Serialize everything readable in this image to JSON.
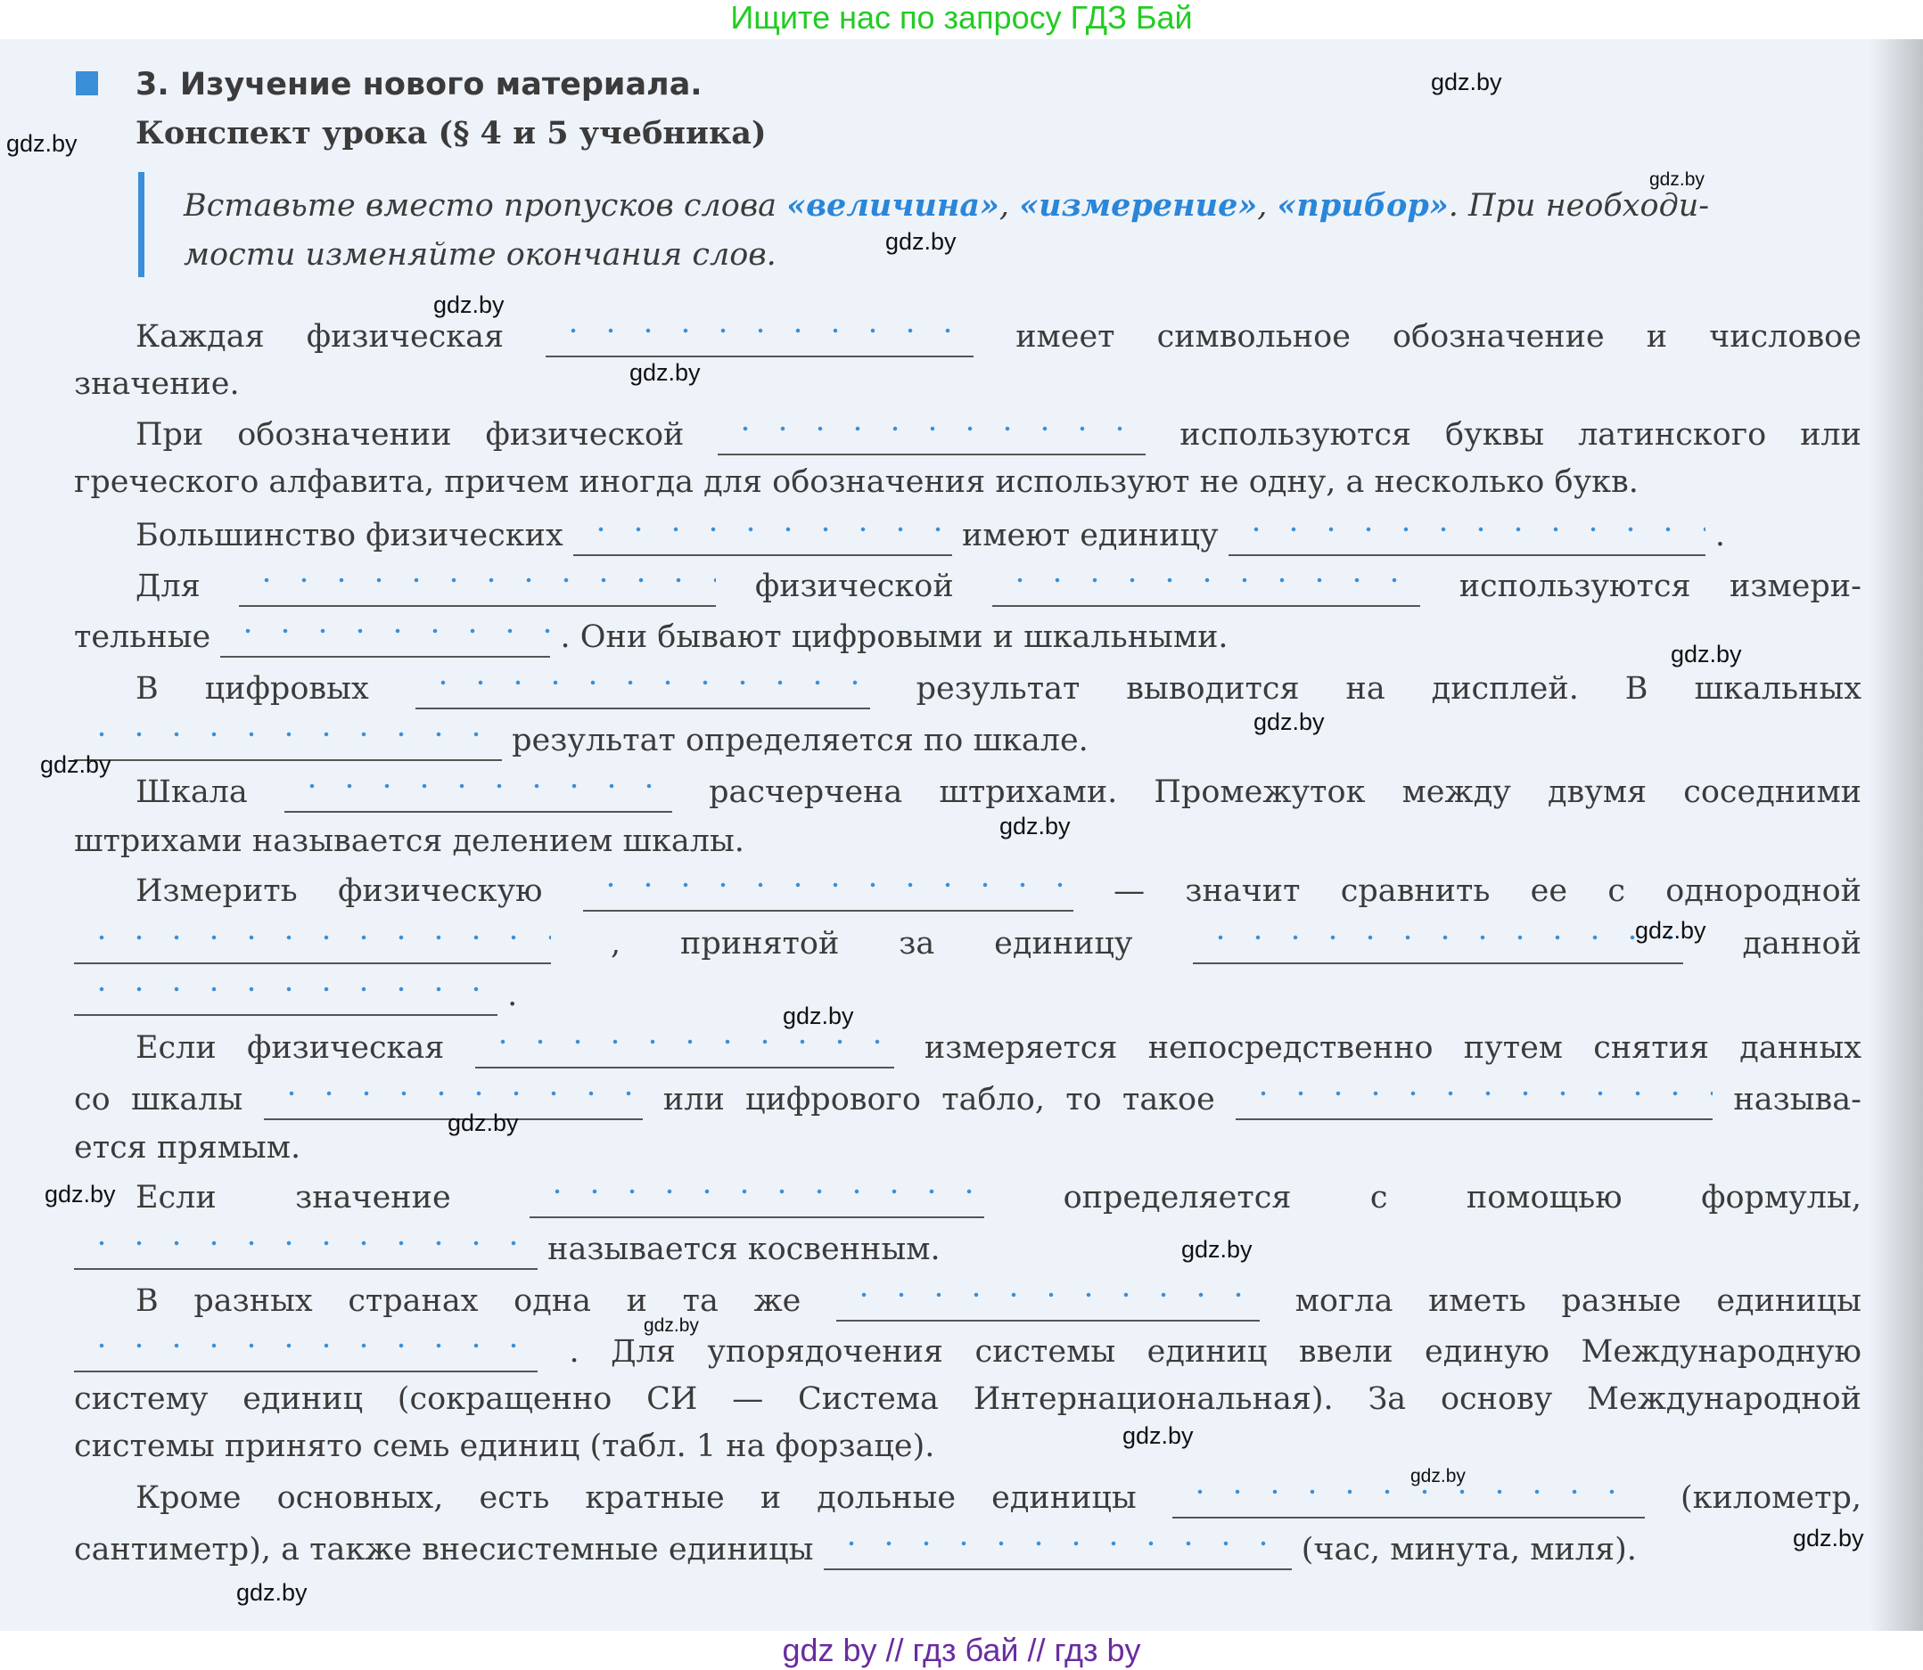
{
  "banner_top": "Ищите нас по запросу ГДЗ Бай",
  "banner_bottom": "gdz by  //  гдз бай  //  гдз by",
  "watermark": "gdz.by",
  "colors": {
    "accent": "#3a8fd8",
    "keyword": "#2a86d8",
    "banner_top": "#22cc22",
    "banner_bottom": "#6a2ca0"
  },
  "section": {
    "title": "3. Изучение нового материала.",
    "subtitle": "Конспект урока (§ 4 и 5 учебника)"
  },
  "instruction": {
    "line1_prefix": "Вставьте вместо пропусков слова ",
    "kw1": "«величина»",
    "sep1": ", ",
    "kw2": "«измерение»",
    "sep2": ", ",
    "kw3": "«прибор»",
    "line1_suffix": ". При необходи-",
    "line2": "мости изменяйте окончания слов."
  },
  "body": {
    "lines": [
      [
        "Каждая физическая",
        null,
        "имеет символьное обозначение и числовое"
      ],
      [
        "значение."
      ],
      [
        "При обозначении физической",
        null,
        "используются буквы латинского или"
      ],
      [
        "греческого алфавита, причем иногда для обозначения используют не одну, а несколько букв."
      ],
      [
        "Большинство физических",
        null,
        "имеют единицу",
        null,
        "."
      ],
      [
        "Для",
        null,
        "физической",
        null,
        "используются измери-"
      ],
      [
        "тельные",
        null,
        ". Они бывают цифровыми и шкальными."
      ],
      [
        "В цифровых",
        null,
        "результат выводится на дисплей. В шкальных"
      ],
      [
        null,
        "результат определяется по шкале."
      ],
      [
        "Шкала",
        null,
        "расчерчена штрихами. Промежуток между двумя соседними"
      ],
      [
        "штрихами называется делением шкалы."
      ],
      [
        "Измерить физическую",
        null,
        "— значит сравнить ее с однородной"
      ],
      [
        null,
        ", принятой за единицу",
        null,
        "данной"
      ],
      [
        null,
        "."
      ],
      [
        "Если физическая",
        null,
        "измеряется непосредственно путем снятия данных"
      ],
      [
        "со шкалы",
        null,
        "или цифрового табло, то такое",
        null,
        "называ-"
      ],
      [
        "ется прямым."
      ],
      [
        "Если значение",
        null,
        "определяется с помощью формулы,"
      ],
      [
        null,
        "называется косвенным."
      ],
      [
        "В разных странах одна и та же",
        null,
        "могла иметь разные единицы"
      ],
      [
        null,
        ". Для упорядочения системы единиц ввели единую Международную"
      ],
      [
        "систему единиц (сокращенно СИ — Система Интернациональная). За основу Международной"
      ],
      [
        "системы принято семь единиц (табл. 1 на форзаце)."
      ],
      [
        "Кроме основных, есть кратные и дольные единицы",
        null,
        "(километр,"
      ],
      [
        "сантиметр), а также внесистемные единицы",
        null,
        "(час, минута, миля)."
      ]
    ]
  }
}
